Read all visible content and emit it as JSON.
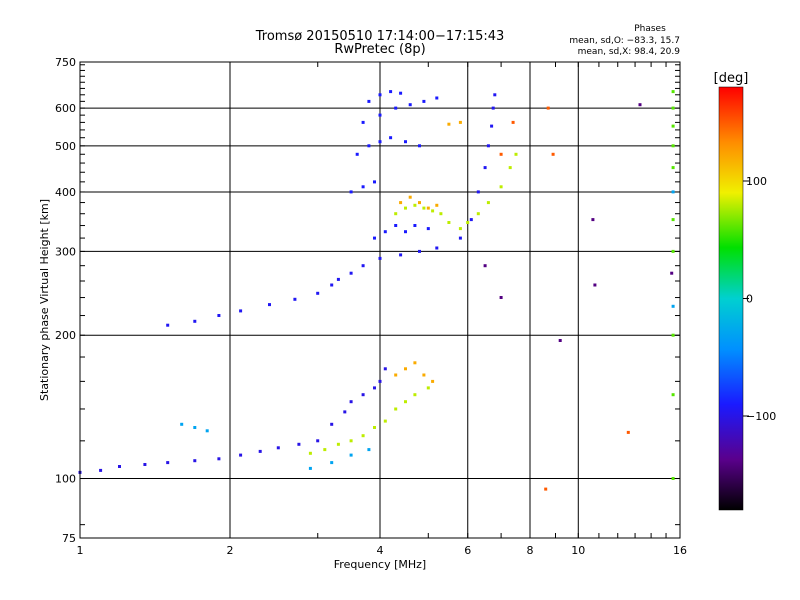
{
  "chart_data": {
    "type": "scatter",
    "title": "Tromsø 20150510 17:14:00−17:15:43",
    "subtitle": "RwPretec (8p)",
    "phases": {
      "heading": "Phases",
      "line1": "mean, sd,O:  −83.3, 15.7",
      "line2": "mean, sd,X:   98.4, 20.9"
    },
    "xlabel": "Frequency [MHz]",
    "ylabel": "Stationary phase Virtual Height [km]",
    "x_scale": "log",
    "y_scale": "log",
    "xlim": [
      1,
      16
    ],
    "ylim": [
      75,
      750
    ],
    "x_ticks": [
      1,
      2,
      4,
      6,
      8,
      10,
      16
    ],
    "x_tick_labels": [
      "1",
      "2",
      "4",
      "6",
      "8",
      "10",
      "16"
    ],
    "y_ticks": [
      75,
      100,
      200,
      300,
      400,
      500,
      600,
      750
    ],
    "y_tick_labels": [
      "75",
      "100",
      "200",
      "300",
      "400",
      "500",
      "600",
      "750"
    ],
    "grid": true,
    "colorbar": {
      "label": "[deg]",
      "range": [
        -180,
        180
      ],
      "ticks": [
        100,
        0,
        -100
      ],
      "tick_labels": [
        "100",
        "0",
        "−100"
      ]
    },
    "series": [
      {
        "phase_deg": -100,
        "points": [
          [
            1.0,
            103
          ],
          [
            1.1,
            104
          ],
          [
            1.2,
            106
          ],
          [
            1.35,
            107
          ],
          [
            1.5,
            108
          ],
          [
            1.7,
            109
          ],
          [
            1.9,
            110
          ],
          [
            2.1,
            112
          ],
          [
            2.3,
            114
          ],
          [
            2.5,
            116
          ],
          [
            2.75,
            118
          ],
          [
            3.0,
            120
          ],
          [
            3.2,
            130
          ],
          [
            3.4,
            138
          ],
          [
            3.5,
            145
          ],
          [
            3.7,
            150
          ],
          [
            3.9,
            155
          ],
          [
            4.0,
            160
          ],
          [
            4.1,
            170
          ]
        ]
      },
      {
        "phase_deg": -95,
        "points": [
          [
            1.5,
            210
          ],
          [
            1.7,
            214
          ],
          [
            1.9,
            220
          ],
          [
            2.1,
            225
          ],
          [
            2.4,
            232
          ],
          [
            2.7,
            238
          ],
          [
            3.0,
            245
          ],
          [
            3.2,
            255
          ],
          [
            3.3,
            262
          ],
          [
            3.5,
            270
          ],
          [
            3.7,
            280
          ],
          [
            4.0,
            290
          ],
          [
            4.4,
            295
          ],
          [
            4.8,
            300
          ],
          [
            5.2,
            305
          ],
          [
            5.8,
            320
          ],
          [
            6.1,
            350
          ],
          [
            6.3,
            400
          ],
          [
            6.5,
            450
          ],
          [
            6.6,
            500
          ],
          [
            6.7,
            550
          ],
          [
            6.75,
            600
          ],
          [
            6.8,
            640
          ]
        ]
      },
      {
        "phase_deg": -90,
        "points": [
          [
            3.5,
            400
          ],
          [
            3.7,
            410
          ],
          [
            3.9,
            420
          ],
          [
            3.6,
            480
          ],
          [
            3.8,
            500
          ],
          [
            4.0,
            510
          ],
          [
            4.2,
            520
          ],
          [
            4.5,
            510
          ],
          [
            4.8,
            500
          ],
          [
            3.7,
            560
          ],
          [
            4.0,
            580
          ],
          [
            4.3,
            600
          ],
          [
            4.6,
            610
          ],
          [
            4.9,
            620
          ],
          [
            5.2,
            630
          ],
          [
            3.8,
            620
          ],
          [
            4.0,
            640
          ],
          [
            4.2,
            650
          ],
          [
            4.4,
            645
          ],
          [
            3.9,
            320
          ],
          [
            4.1,
            330
          ],
          [
            4.3,
            340
          ],
          [
            4.5,
            330
          ],
          [
            4.7,
            340
          ],
          [
            5.0,
            335
          ]
        ]
      },
      {
        "phase_deg": 80,
        "points": [
          [
            2.9,
            113
          ],
          [
            3.1,
            115
          ],
          [
            3.3,
            118
          ],
          [
            3.5,
            120
          ],
          [
            3.7,
            123
          ],
          [
            3.9,
            128
          ],
          [
            4.1,
            132
          ],
          [
            4.3,
            140
          ],
          [
            4.5,
            145
          ],
          [
            4.7,
            150
          ],
          [
            5.0,
            155
          ],
          [
            4.3,
            360
          ],
          [
            4.5,
            370
          ],
          [
            4.7,
            375
          ],
          [
            4.9,
            370
          ],
          [
            5.1,
            365
          ],
          [
            5.3,
            360
          ],
          [
            5.5,
            345
          ],
          [
            5.8,
            335
          ],
          [
            6.0,
            345
          ],
          [
            6.3,
            360
          ],
          [
            6.6,
            380
          ],
          [
            7.0,
            410
          ],
          [
            7.3,
            450
          ],
          [
            7.5,
            480
          ]
        ]
      },
      {
        "phase_deg": 120,
        "points": [
          [
            4.3,
            165
          ],
          [
            4.5,
            170
          ],
          [
            4.7,
            175
          ],
          [
            4.9,
            165
          ],
          [
            5.1,
            160
          ],
          [
            4.4,
            380
          ],
          [
            4.6,
            390
          ],
          [
            4.8,
            380
          ],
          [
            5.0,
            370
          ],
          [
            5.2,
            375
          ],
          [
            5.5,
            555
          ],
          [
            5.8,
            560
          ]
        ]
      },
      {
        "phase_deg": -30,
        "points": [
          [
            1.6,
            130
          ],
          [
            1.7,
            128
          ],
          [
            1.8,
            126
          ],
          [
            2.9,
            105
          ],
          [
            3.2,
            108
          ],
          [
            3.5,
            112
          ],
          [
            3.8,
            115
          ],
          [
            15.5,
            230
          ],
          [
            15.5,
            400
          ]
        ]
      },
      {
        "phase_deg": 60,
        "points": [
          [
            15.5,
            100
          ],
          [
            15.5,
            150
          ],
          [
            15.5,
            200
          ],
          [
            15.5,
            300
          ],
          [
            15.5,
            350
          ],
          [
            15.5,
            450
          ],
          [
            15.5,
            500
          ],
          [
            15.5,
            550
          ],
          [
            15.5,
            600
          ],
          [
            15.5,
            650
          ]
        ]
      },
      {
        "phase_deg": -140,
        "points": [
          [
            6.5,
            280
          ],
          [
            7.0,
            240
          ],
          [
            9.2,
            195
          ],
          [
            10.7,
            350
          ],
          [
            10.8,
            255
          ],
          [
            13.3,
            610
          ],
          [
            15.4,
            270
          ]
        ]
      },
      {
        "phase_deg": 150,
        "points": [
          [
            7.0,
            480
          ],
          [
            7.4,
            560
          ],
          [
            8.6,
            95
          ],
          [
            8.7,
            600
          ],
          [
            8.9,
            480
          ],
          [
            12.6,
            125
          ]
        ]
      }
    ]
  }
}
